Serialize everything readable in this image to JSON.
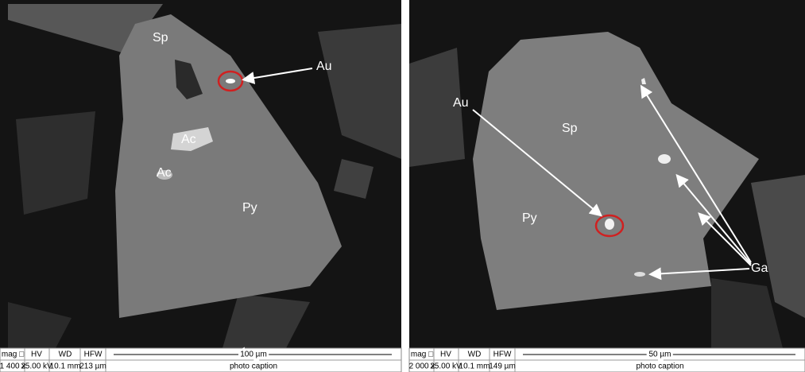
{
  "panels": [
    {
      "labels": [
        "Sp",
        "Au",
        "Ac",
        "Ac",
        "Py"
      ],
      "info": {
        "headers": [
          "mag □",
          "HV",
          "WD",
          "HFW"
        ],
        "values": [
          "1 400 x",
          "25.00 kV",
          "10.1 mm",
          "213 µm"
        ],
        "scale": "100 µm",
        "caption": "photo caption"
      }
    },
    {
      "labels": [
        "Au",
        "Sp",
        "Py",
        "Ga"
      ],
      "info": {
        "headers": [
          "mag □",
          "HV",
          "WD",
          "HFW"
        ],
        "values": [
          "2 000 x",
          "25.00 kV",
          "10.1 mm",
          "149 µm"
        ],
        "scale": "50 µm",
        "caption": "photo caption"
      }
    }
  ]
}
